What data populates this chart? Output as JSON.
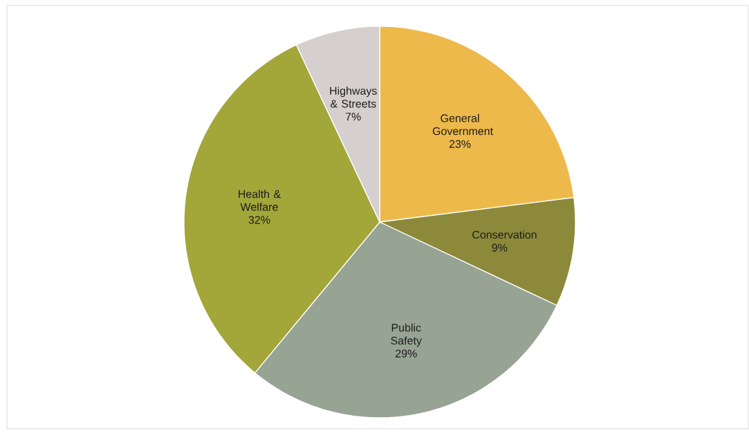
{
  "chart_data": {
    "type": "pie",
    "categories": [
      "General Government",
      "Conservation",
      "Public Safety",
      "Health & Welfare",
      "Highways & Streets"
    ],
    "values": [
      23,
      9,
      29,
      32,
      7
    ],
    "value_labels": [
      "23%",
      "9%",
      "29%",
      "32%",
      "7%"
    ],
    "colors": [
      "#edb94b",
      "#8c8a3a",
      "#97a393",
      "#a3a639",
      "#d6cfcf"
    ]
  }
}
